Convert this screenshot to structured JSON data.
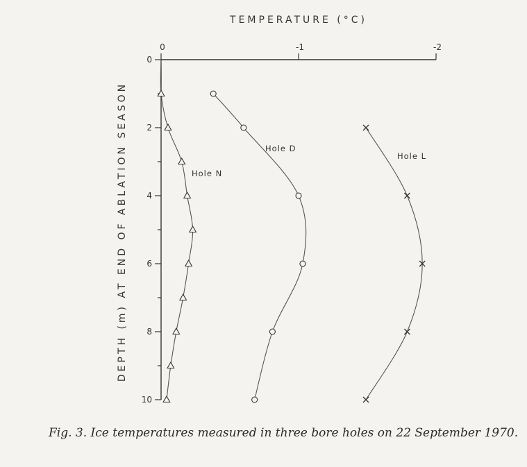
{
  "caption": "Fig. 3. Ice temperatures measured in three bore holes on 22 September 1970.",
  "chart_data": {
    "type": "line",
    "title": "",
    "xlabel": "TEMPERATURE (°C)",
    "ylabel": "DEPTH (m) AT END OF ABLATION SEASON",
    "xlim": [
      0,
      -2
    ],
    "ylim": [
      0,
      10
    ],
    "x_ticks": [
      0,
      -1,
      -2
    ],
    "x_tick_labels": [
      "0",
      "-1",
      "-2"
    ],
    "y_ticks": [
      0,
      2,
      4,
      6,
      8,
      10
    ],
    "y_tick_labels": [
      "0",
      "2",
      "4",
      "6",
      "8",
      "10"
    ],
    "x_axis_position": "top",
    "grid": false,
    "legend": "none (series labelled directly)",
    "line_color": "#555555",
    "series": [
      {
        "name": "Hole N",
        "marker": "triangle",
        "points": [
          {
            "x": 0.0,
            "y": 1
          },
          {
            "x": -0.05,
            "y": 2
          },
          {
            "x": -0.15,
            "y": 3
          },
          {
            "x": -0.19,
            "y": 4
          },
          {
            "x": -0.23,
            "y": 5
          },
          {
            "x": -0.2,
            "y": 6
          },
          {
            "x": -0.16,
            "y": 7
          },
          {
            "x": -0.11,
            "y": 8
          },
          {
            "x": -0.07,
            "y": 9
          },
          {
            "x": -0.04,
            "y": 10
          }
        ]
      },
      {
        "name": "Hole D",
        "marker": "circle",
        "points": [
          {
            "x": -0.38,
            "y": 1
          },
          {
            "x": -0.6,
            "y": 2
          },
          {
            "x": -1.0,
            "y": 4
          },
          {
            "x": -1.03,
            "y": 6
          },
          {
            "x": -0.81,
            "y": 8
          },
          {
            "x": -0.68,
            "y": 10
          }
        ]
      },
      {
        "name": "Hole L",
        "marker": "cross",
        "points": [
          {
            "x": -1.49,
            "y": 2
          },
          {
            "x": -1.79,
            "y": 4
          },
          {
            "x": -1.9,
            "y": 6
          },
          {
            "x": -1.79,
            "y": 8
          },
          {
            "x": -1.49,
            "y": 10
          }
        ]
      }
    ]
  }
}
